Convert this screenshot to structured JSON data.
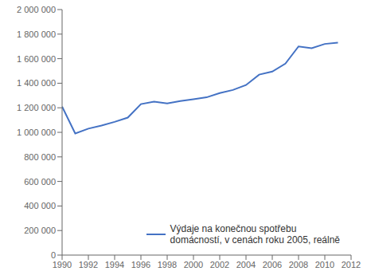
{
  "chart_data": {
    "type": "line",
    "x": [
      1990,
      1991,
      1992,
      1993,
      1994,
      1995,
      1996,
      1997,
      1998,
      1999,
      2000,
      2001,
      2002,
      2003,
      2004,
      2005,
      2006,
      2007,
      2008,
      2009,
      2010,
      2011
    ],
    "series": [
      {
        "name": "Výdaje na konečnou spotřebu\ndomácností, v cenách roku 2005, reálně",
        "color": "#4472c4",
        "values": [
          1210000,
          990000,
          1030000,
          1055000,
          1085000,
          1120000,
          1230000,
          1250000,
          1235000,
          1255000,
          1270000,
          1285000,
          1320000,
          1345000,
          1385000,
          1470000,
          1495000,
          1560000,
          1700000,
          1685000,
          1720000,
          1730000
        ]
      }
    ],
    "xlim": [
      1990,
      2012
    ],
    "xticks": [
      1990,
      1992,
      1994,
      1996,
      1998,
      2000,
      2002,
      2004,
      2006,
      2008,
      2010,
      2012
    ],
    "ylim": [
      0,
      2000000
    ],
    "yticks": [
      0,
      {
        "value": 200000,
        "label": "200 000"
      },
      {
        "value": 400000,
        "label": "400 000"
      },
      {
        "value": 600000,
        "label": "600 000"
      },
      {
        "value": 800000,
        "label": "800 000"
      },
      {
        "value": 1000000,
        "label": "1 000 000"
      },
      {
        "value": 1200000,
        "label": "1 200 000"
      },
      {
        "value": 1400000,
        "label": "1 400 000"
      },
      {
        "value": 1600000,
        "label": "1 600 000"
      },
      {
        "value": 1800000,
        "label": "1 800 000"
      },
      {
        "value": 2000000,
        "label": "2 000 000"
      }
    ],
    "grid": false,
    "legend": "lower right"
  }
}
